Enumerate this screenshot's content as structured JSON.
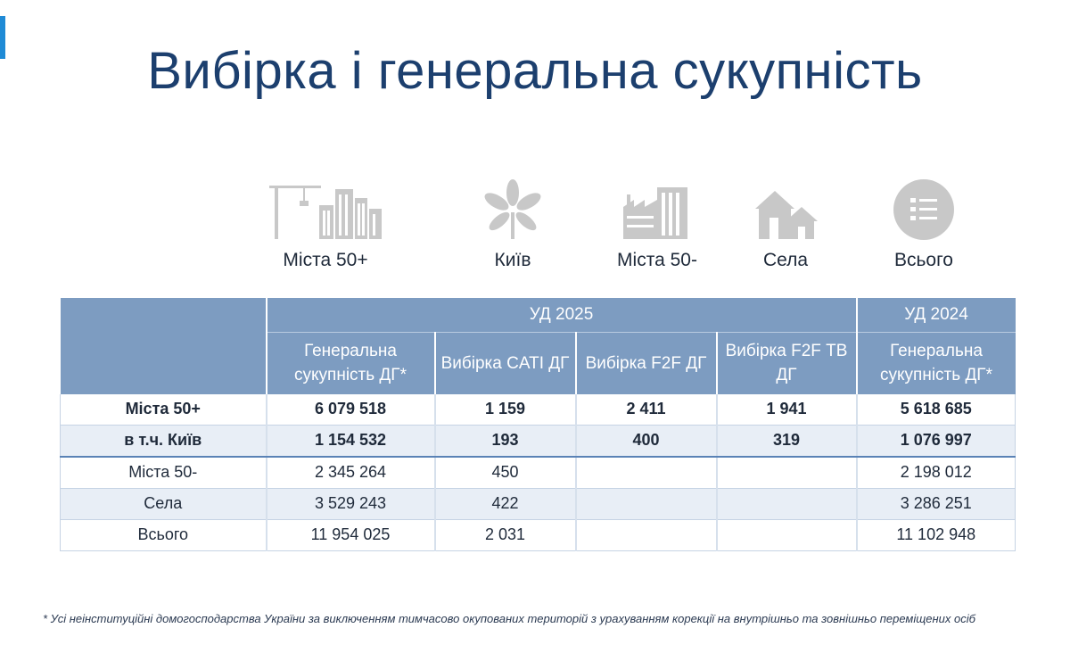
{
  "slide": {
    "title": "Вибірка і генеральна сукупність"
  },
  "categories": [
    {
      "icon": "city-skyline-icon",
      "label": "Міста 50+"
    },
    {
      "icon": "chestnut-leaf-icon",
      "label": "Київ"
    },
    {
      "icon": "factory-town-icon",
      "label": "Міста 50-"
    },
    {
      "icon": "village-houses-icon",
      "label": "Села"
    },
    {
      "icon": "checklist-icon",
      "label": "Всього"
    }
  ],
  "table": {
    "group_headers": {
      "current": "УД 2025",
      "previous": "УД 2024"
    },
    "columns": [
      "Генеральна сукупність ДГ*",
      "Вибірка CATI ДГ",
      "Вибірка F2F ДГ",
      "Вибірка F2F ТВ ДГ",
      "Генеральна сукупність ДГ*"
    ],
    "rows": [
      {
        "label": "Міста 50+",
        "values": [
          "6 079 518",
          "1 159",
          "2 411",
          "1 941",
          "5 618 685"
        ]
      },
      {
        "label": "в т.ч. Київ",
        "values": [
          "1 154 532",
          "193",
          "400",
          "319",
          "1 076 997"
        ]
      },
      {
        "label": "Міста 50-",
        "values": [
          "2 345 264",
          "450",
          "",
          "",
          "2 198 012"
        ]
      },
      {
        "label": "Села",
        "values": [
          "3 529 243",
          "422",
          "",
          "",
          "3 286 251"
        ]
      },
      {
        "label": "Всього",
        "values": [
          "11 954 025",
          "2 031",
          "",
          "",
          "11 102 948"
        ]
      }
    ]
  },
  "footnote": "* Усі неінституційні домогосподарства України за виключенням  тимчасово окупованих територій з урахуванням корекції на внутрішньо та зовнішньо переміщених осіб",
  "colors": {
    "title": "#1c3f6e",
    "accent": "#1f8bd6",
    "header_bg": "#7d9cc1",
    "row_alt_bg": "#e8eef6",
    "icon_gray": "#c8c8c8"
  }
}
